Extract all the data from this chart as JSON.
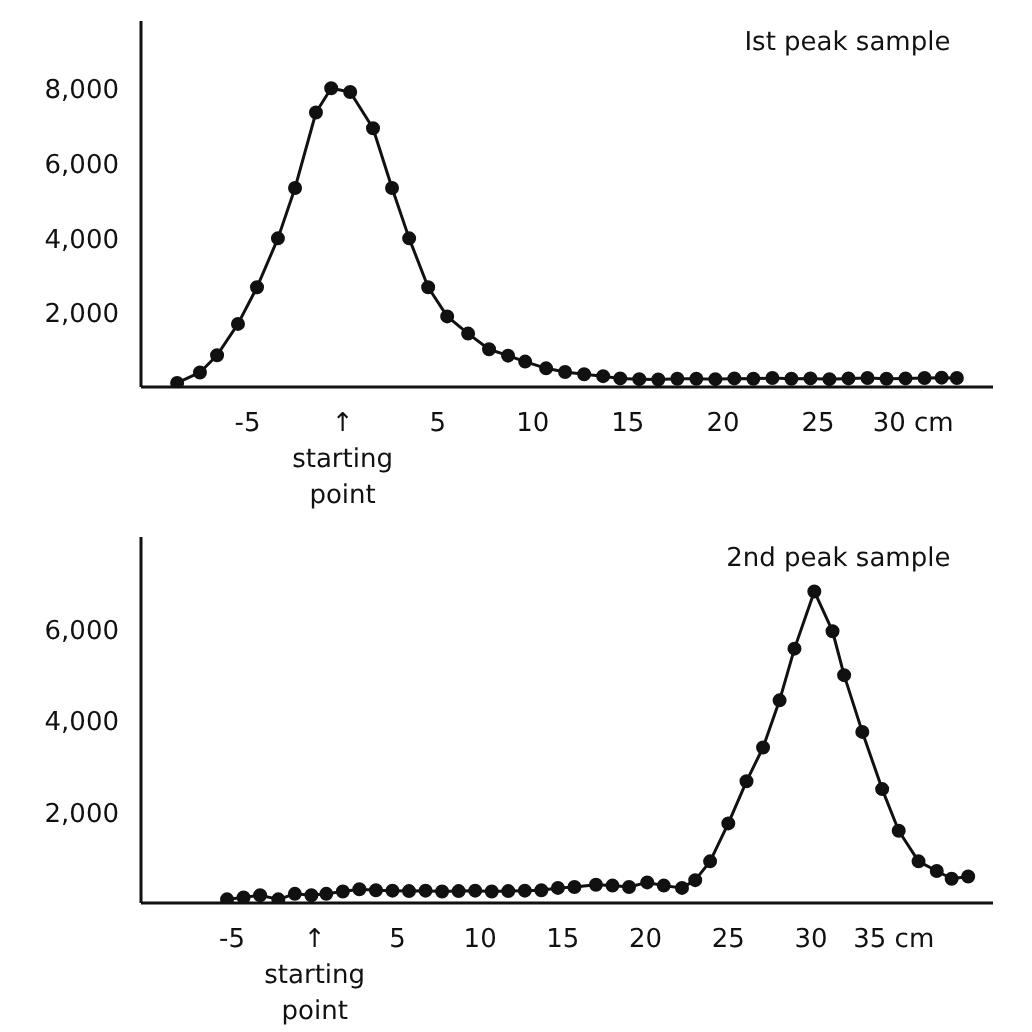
{
  "chart_data": [
    {
      "type": "line",
      "title": "Ist peak sample",
      "marker": "circle",
      "line_style": "solid",
      "grid": false,
      "x": [
        -8.7,
        -7.5,
        -6.6,
        -5.5,
        -4.5,
        -3.4,
        -2.5,
        -1.4,
        -0.6,
        0.4,
        1.6,
        2.6,
        3.5,
        4.5,
        5.5,
        6.6,
        7.7,
        8.7,
        9.6,
        10.7,
        11.7,
        12.7,
        13.7,
        14.6,
        15.6,
        16.6,
        17.6,
        18.6,
        19.6,
        20.6,
        21.6,
        22.6,
        23.6,
        24.6,
        25.6,
        26.6,
        27.6,
        28.6,
        29.6,
        30.6,
        31.5,
        32.3
      ],
      "series": [
        {
          "color": "#111111",
          "values": [
            110,
            390,
            850,
            1690,
            2670,
            3980,
            5330,
            7350,
            8000,
            7900,
            6930,
            5330,
            3980,
            2670,
            1890,
            1430,
            1010,
            840,
            680,
            500,
            400,
            340,
            290,
            230,
            210,
            200,
            220,
            220,
            210,
            230,
            220,
            240,
            220,
            230,
            210,
            230,
            240,
            220,
            230,
            240,
            250,
            240
          ]
        }
      ],
      "xlim": [
        -10.6,
        34.2
      ],
      "ylim": [
        0,
        9800
      ],
      "xticks": [
        -5,
        {
          "value": 0,
          "label": "↑\nstarting\npoint"
        },
        5,
        10,
        15,
        20,
        25,
        {
          "value": 30,
          "label": "30 cm"
        }
      ],
      "yticks": [
        {
          "value": 2000,
          "label": "2,000"
        },
        {
          "value": 4000,
          "label": "4,000"
        },
        {
          "value": 6000,
          "label": "6,000"
        },
        {
          "value": 8000,
          "label": "8,000"
        }
      ]
    },
    {
      "type": "line",
      "title": "2nd peak sample",
      "marker": "circle",
      "line_style": "solid",
      "grid": false,
      "x": [
        -5.3,
        -4.3,
        -3.3,
        -2.2,
        -1.2,
        -0.2,
        0.7,
        1.7,
        2.7,
        3.7,
        4.7,
        5.7,
        6.7,
        7.7,
        8.7,
        9.7,
        10.7,
        11.7,
        12.7,
        13.7,
        14.7,
        15.7,
        17.0,
        18.0,
        19.0,
        20.1,
        21.1,
        22.2,
        23.0,
        23.9,
        25.0,
        26.1,
        27.1,
        28.1,
        29.0,
        30.2,
        31.3,
        32.0,
        33.1,
        34.3,
        35.3,
        36.5,
        37.6,
        38.5,
        39.5
      ],
      "series": [
        {
          "color": "#111111",
          "values": [
            80,
            120,
            170,
            80,
            200,
            170,
            200,
            250,
            300,
            280,
            270,
            260,
            270,
            250,
            260,
            270,
            250,
            260,
            270,
            280,
            330,
            350,
            400,
            380,
            350,
            450,
            380,
            330,
            500,
            910,
            1740,
            2660,
            3400,
            4430,
            5560,
            6810,
            5940,
            4980,
            3740,
            2490,
            1580,
            910,
            700,
            530,
            580
          ]
        }
      ],
      "xlim": [
        -10.5,
        41
      ],
      "ylim": [
        0,
        8000
      ],
      "xticks": [
        -5,
        {
          "value": 0,
          "label": "↑\nstarting\npoint"
        },
        5,
        10,
        15,
        20,
        25,
        30,
        {
          "value": 35,
          "label": "35 cm"
        }
      ],
      "yticks": [
        {
          "value": 2000,
          "label": "2,000"
        },
        {
          "value": 4000,
          "label": "4,000"
        },
        {
          "value": 6000,
          "label": "6,000"
        }
      ]
    }
  ]
}
